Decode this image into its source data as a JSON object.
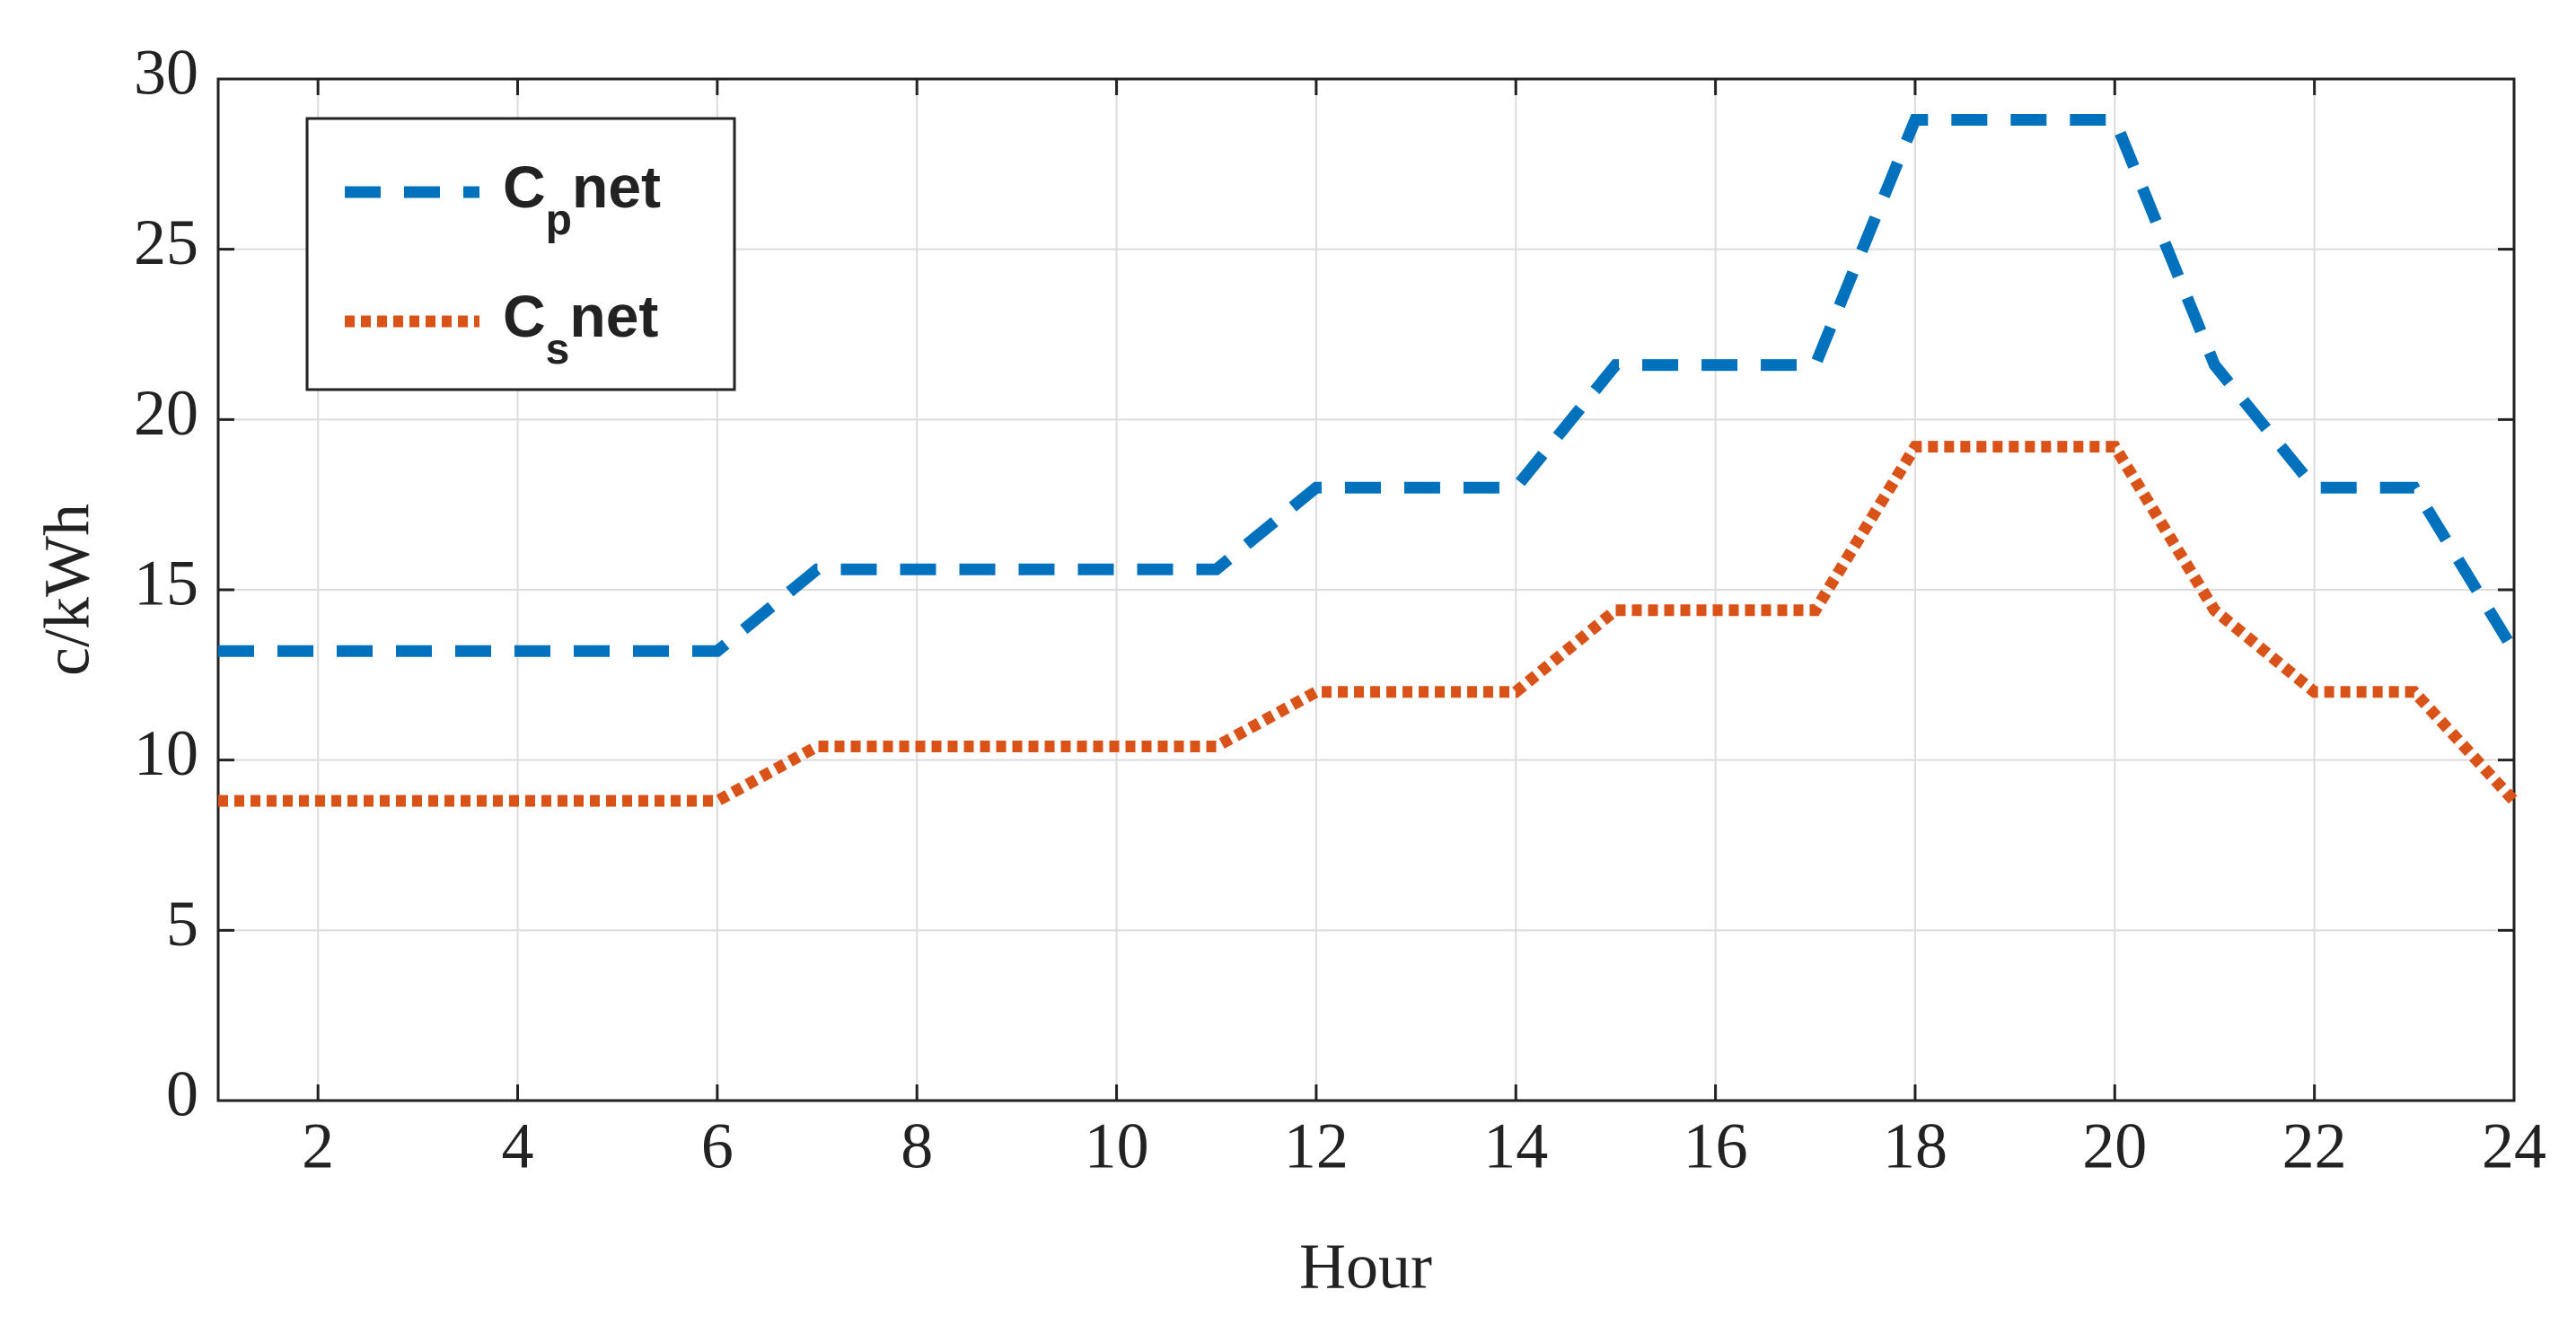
{
  "chart_data": {
    "type": "line",
    "x": [
      1,
      2,
      3,
      4,
      5,
      6,
      7,
      8,
      9,
      10,
      11,
      12,
      13,
      14,
      15,
      16,
      17,
      18,
      19,
      20,
      21,
      22,
      23,
      24
    ],
    "series": [
      {
        "name": "Cpnet",
        "color": "#0072bd",
        "dash": "dashed",
        "values": [
          13.2,
          13.2,
          13.2,
          13.2,
          13.2,
          13.2,
          15.6,
          15.6,
          15.6,
          15.6,
          15.6,
          18,
          18,
          18,
          21.6,
          21.6,
          21.6,
          28.8,
          28.8,
          28.8,
          21.6,
          18,
          18,
          13.2
        ]
      },
      {
        "name": "Csnet",
        "color": "#d95319",
        "dash": "dotted",
        "values": [
          8.8,
          8.8,
          8.8,
          8.8,
          8.8,
          8.8,
          10.4,
          10.4,
          10.4,
          10.4,
          10.4,
          12,
          12,
          12,
          14.4,
          14.4,
          14.4,
          19.2,
          19.2,
          19.2,
          14.4,
          12,
          12,
          8.8
        ]
      }
    ],
    "x_label": "Hour",
    "y_label": "c/kWh",
    "xlim": [
      1,
      24
    ],
    "xticks": [
      2,
      4,
      6,
      8,
      10,
      12,
      14,
      16,
      18,
      20,
      22,
      24
    ],
    "ylim": [
      0,
      30
    ],
    "yticks": [
      0,
      5,
      10,
      15,
      20,
      25,
      30
    ],
    "grid": true,
    "legend": "upper left"
  }
}
